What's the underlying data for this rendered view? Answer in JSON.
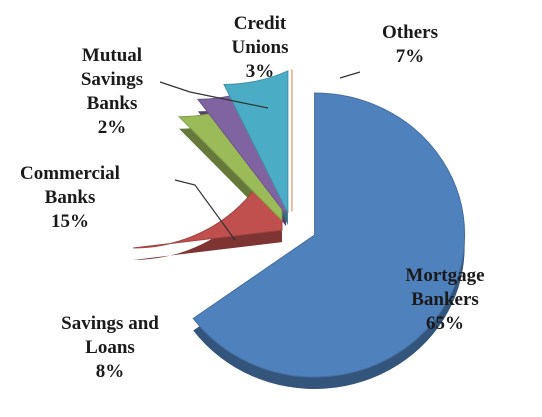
{
  "chart_data": {
    "type": "pie",
    "categories": [
      "Mortgage Bankers",
      "Savings and Loans",
      "Commercial Banks",
      "Mutual Savings Banks",
      "Credit Unions",
      "Others"
    ],
    "values": [
      65,
      8,
      15,
      2,
      3,
      7
    ],
    "value_labels": [
      "65%",
      "8%",
      "15%",
      "2%",
      "3%",
      "7%"
    ],
    "colors": [
      "#4f81bd",
      "#c0504d",
      "#9bbb59",
      "#8064a2",
      "#4bacc6",
      "#f79646"
    ]
  }
}
